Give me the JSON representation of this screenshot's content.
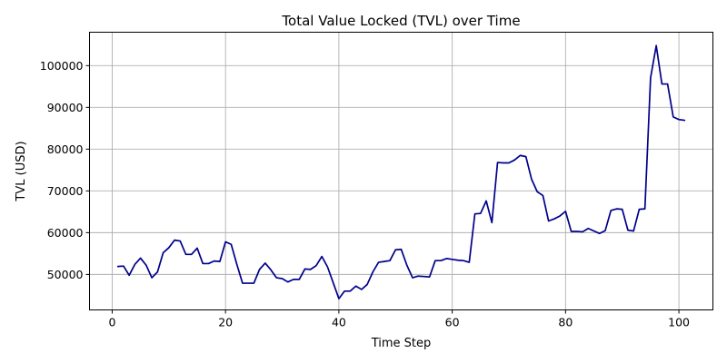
{
  "chart_data": {
    "type": "line",
    "title": "Total Value Locked (TVL) over Time",
    "xlabel": "Time Step",
    "ylabel": "TVL (USD)",
    "xlim": [
      -4,
      106
    ],
    "ylim": [
      41500,
      108000
    ],
    "xticks": [
      0,
      20,
      40,
      60,
      80,
      100
    ],
    "yticks": [
      50000,
      60000,
      70000,
      80000,
      90000,
      100000
    ],
    "grid": true,
    "line_color": "#00008b",
    "series": [
      {
        "x": [
          1,
          2,
          3,
          4,
          5,
          6,
          7,
          8,
          9,
          10,
          11,
          12,
          13,
          14,
          15,
          16,
          17,
          18,
          19,
          20,
          21,
          22,
          23,
          24,
          25,
          26,
          27,
          28,
          29,
          30,
          31,
          32,
          33,
          34,
          35,
          36,
          37,
          38,
          39,
          40,
          41,
          42,
          43,
          44,
          45,
          46,
          47,
          48,
          49,
          50,
          51,
          52,
          53,
          54,
          55,
          56,
          57,
          58,
          59,
          60,
          61,
          62,
          63,
          64,
          65,
          66,
          67,
          68,
          69,
          70,
          71,
          72,
          73,
          74,
          75,
          76,
          77,
          78,
          79,
          80,
          81,
          82,
          83,
          84,
          85,
          86,
          87,
          88,
          89,
          90,
          91,
          92,
          93,
          94,
          95,
          96,
          97,
          98,
          99,
          100,
          101
        ],
        "values": [
          51900,
          52000,
          49800,
          52400,
          53900,
          52200,
          49200,
          50600,
          55200,
          56400,
          58200,
          58000,
          54800,
          54800,
          56300,
          52600,
          52600,
          53200,
          53100,
          57800,
          57200,
          52400,
          47900,
          47900,
          47900,
          51200,
          52700,
          51100,
          49200,
          49000,
          48200,
          48800,
          48800,
          51300,
          51200,
          52100,
          54300,
          51800,
          48000,
          44200,
          46000,
          46000,
          47200,
          46400,
          47600,
          50600,
          52900,
          53100,
          53300,
          55900,
          56000,
          52200,
          49200,
          49600,
          49500,
          49400,
          53300,
          53300,
          53800,
          53600,
          53400,
          53300,
          52900,
          64500,
          64600,
          67600,
          62400,
          76800,
          76700,
          76700,
          77400,
          78500,
          78200,
          72800,
          69800,
          68900,
          62800,
          63300,
          64000,
          65100,
          60300,
          60300,
          60200,
          61000,
          60400,
          59800,
          60500,
          65300,
          65700,
          65600,
          60600,
          60400,
          65600,
          65700,
          97100,
          104800,
          95600,
          95600,
          87700,
          87100,
          86900
        ]
      }
    ]
  }
}
